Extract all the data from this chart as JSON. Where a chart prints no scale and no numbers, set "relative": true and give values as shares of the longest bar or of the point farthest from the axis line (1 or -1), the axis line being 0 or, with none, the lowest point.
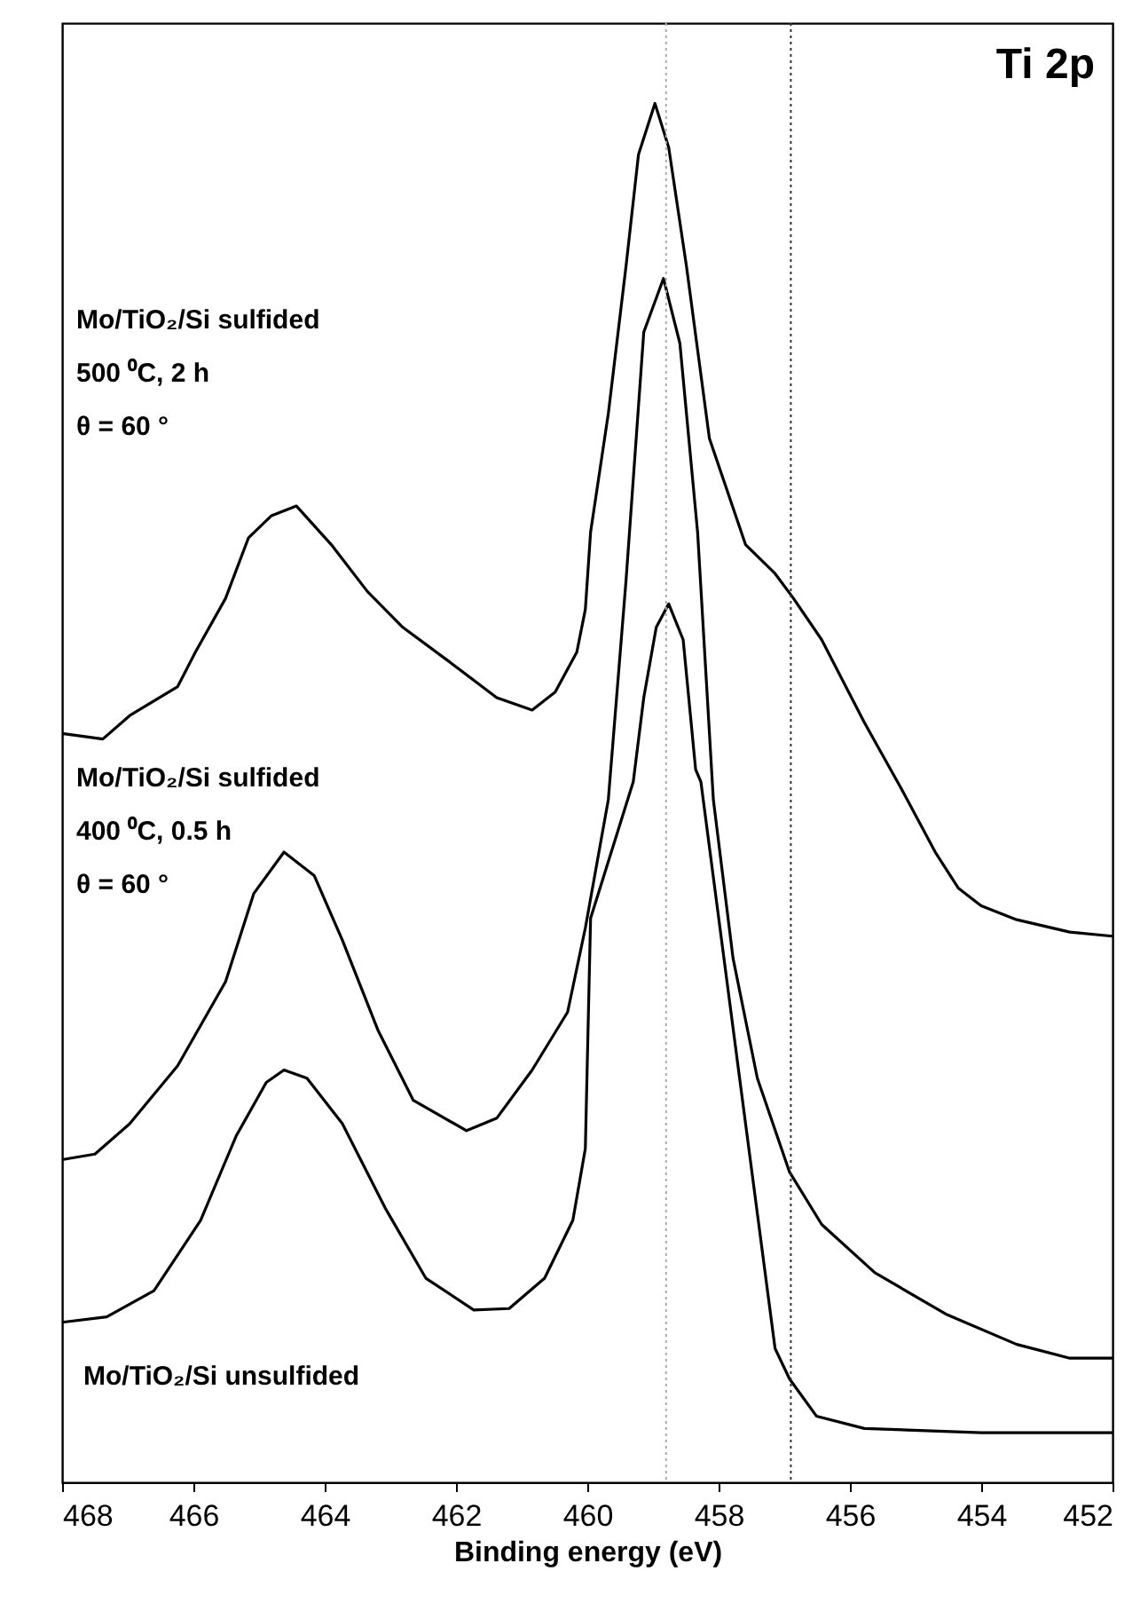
{
  "chart_data": {
    "type": "line",
    "title": "Ti 2p",
    "xlabel": "Binding energy (eV)",
    "relative": true,
    "xlim": [
      468,
      452
    ],
    "xticks": [
      468,
      466,
      464,
      462,
      460,
      458,
      456,
      454,
      452
    ],
    "ref_lines": [
      {
        "axis": "x",
        "value": 456.9,
        "color": "#333333",
        "line_style": "dotted"
      },
      {
        "axis": "x",
        "value": 458.8,
        "color": "#aaaaaa",
        "line_style": "dotted"
      }
    ],
    "series": [
      {
        "name": "Mo/TiO₂/Si sulfided\n500 ⁰C,  2 h\nθ = 60 °",
        "color": "#000000",
        "x": [
          468,
          467.38,
          466.97,
          466.24,
          465.97,
          465.51,
          465.16,
          464.81,
          464.43,
          463.9,
          463.35,
          462.81,
          462.1,
          461.38,
          460.84,
          460.49,
          460.16,
          460.03,
          459.95,
          459.68,
          459.41,
          459.22,
          458.97,
          458.76,
          458.49,
          458.14,
          457.59,
          457.14,
          456.86,
          456.43,
          455.78,
          455.24,
          454.7,
          454.35,
          454.0,
          453.46,
          452.65,
          452
        ],
        "values": [
          0.543,
          0.539,
          0.556,
          0.577,
          0.602,
          0.641,
          0.685,
          0.701,
          0.708,
          0.68,
          0.646,
          0.62,
          0.595,
          0.569,
          0.56,
          0.573,
          0.602,
          0.633,
          0.689,
          0.775,
          0.882,
          0.963,
          1.0,
          0.968,
          0.882,
          0.757,
          0.68,
          0.659,
          0.641,
          0.611,
          0.551,
          0.505,
          0.457,
          0.431,
          0.418,
          0.408,
          0.399,
          0.396
        ]
      },
      {
        "name": "Mo/TiO₂/Si sulfided\n400 ⁰C, 0.5 h\nθ = 60 °",
        "color": "#000000",
        "x": [
          468,
          467.5,
          466.97,
          466.24,
          465.51,
          465.08,
          464.62,
          464.16,
          463.73,
          463.19,
          462.65,
          461.84,
          461.38,
          460.84,
          460.3,
          460.03,
          459.68,
          459.41,
          459.14,
          458.84,
          458.59,
          458.32,
          458.08,
          457.78,
          457.41,
          456.92,
          456.43,
          455.62,
          454.54,
          453.46,
          452.65,
          452
        ],
        "values": [
          0.234,
          0.238,
          0.26,
          0.302,
          0.363,
          0.427,
          0.457,
          0.44,
          0.393,
          0.328,
          0.277,
          0.255,
          0.264,
          0.299,
          0.341,
          0.402,
          0.495,
          0.654,
          0.834,
          0.873,
          0.826,
          0.689,
          0.495,
          0.38,
          0.293,
          0.225,
          0.187,
          0.152,
          0.122,
          0.1,
          0.09,
          0.09
        ]
      },
      {
        "name": "Mo/TiO₂/Si unsulfided",
        "color": "#000000",
        "x": [
          468,
          467.32,
          466.6,
          465.89,
          465.35,
          464.89,
          464.62,
          464.27,
          463.73,
          463.08,
          462.46,
          461.73,
          461.19,
          460.65,
          460.22,
          460.03,
          459.95,
          459.3,
          459.14,
          458.95,
          458.76,
          458.54,
          458.35,
          458.27,
          457.68,
          457.14,
          456.92,
          456.51,
          455.78,
          454.0,
          452
        ],
        "values": [
          0.116,
          0.12,
          0.139,
          0.19,
          0.251,
          0.29,
          0.299,
          0.293,
          0.26,
          0.199,
          0.148,
          0.125,
          0.126,
          0.148,
          0.19,
          0.242,
          0.409,
          0.508,
          0.569,
          0.62,
          0.637,
          0.611,
          0.517,
          0.508,
          0.293,
          0.097,
          0.075,
          0.048,
          0.039,
          0.036,
          0.036
        ]
      }
    ]
  }
}
